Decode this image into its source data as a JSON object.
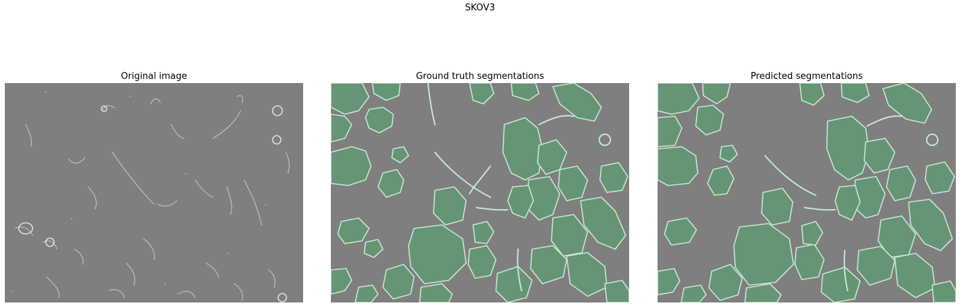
{
  "figure": {
    "title": "SKOV3"
  },
  "panels": [
    {
      "title": "Original image"
    },
    {
      "title": "Ground truth segmentations"
    },
    {
      "title": "Predicted segmentations"
    }
  ],
  "colors": {
    "background_gray": "#7f7f7f",
    "cell_fill": "#659574",
    "cell_outline": "#c7e6d3",
    "raw_edge": "#b7d4c4"
  }
}
